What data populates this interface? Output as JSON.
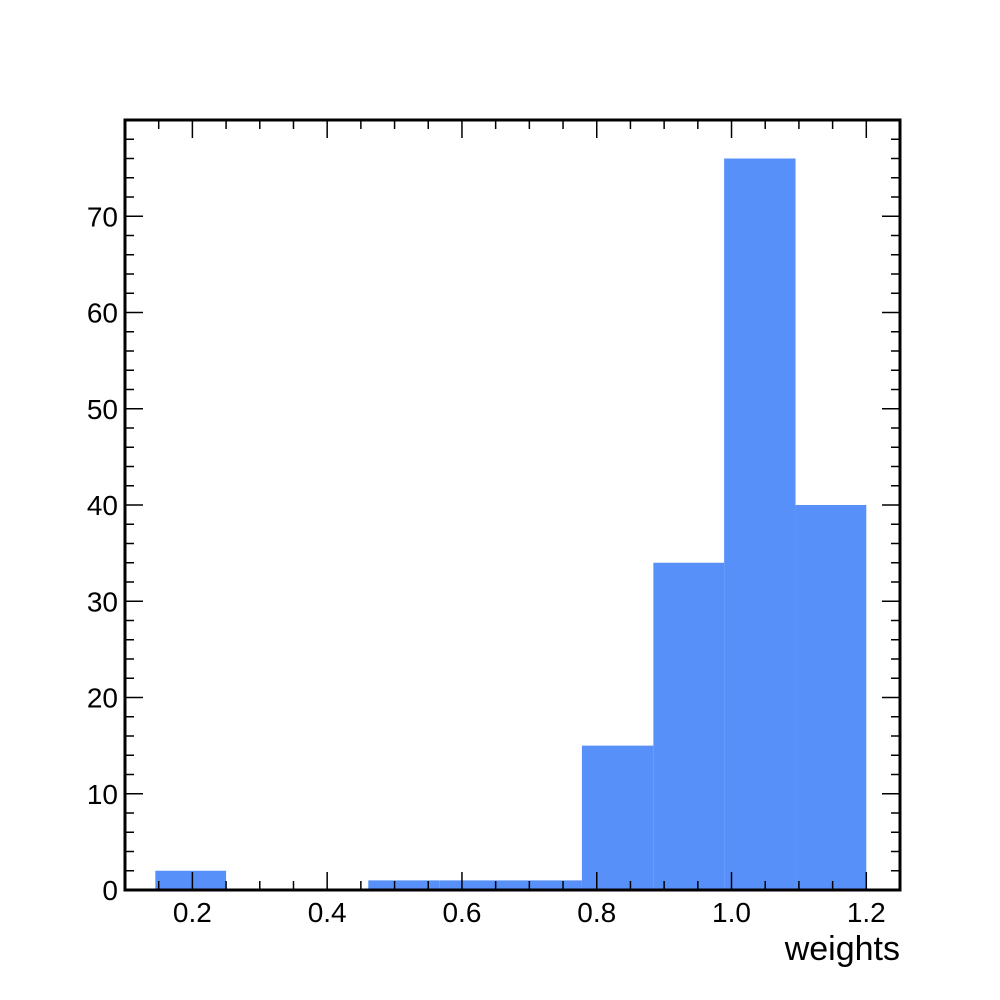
{
  "chart_data": {
    "type": "bar",
    "histogram": true,
    "bins": [
      {
        "x0": 0.145,
        "x1": 0.25,
        "count": 2
      },
      {
        "x0": 0.25,
        "x1": 0.356,
        "count": 0
      },
      {
        "x0": 0.356,
        "x1": 0.461,
        "count": 0
      },
      {
        "x0": 0.461,
        "x1": 0.567,
        "count": 1
      },
      {
        "x0": 0.567,
        "x1": 0.672,
        "count": 1
      },
      {
        "x0": 0.672,
        "x1": 0.778,
        "count": 1
      },
      {
        "x0": 0.778,
        "x1": 0.884,
        "count": 15
      },
      {
        "x0": 0.884,
        "x1": 0.989,
        "count": 34
      },
      {
        "x0": 0.989,
        "x1": 1.095,
        "count": 76
      },
      {
        "x0": 1.095,
        "x1": 1.2,
        "count": 40
      }
    ],
    "xlabel": "weights",
    "ylabel": "",
    "title": "",
    "xlim": [
      0.1,
      1.25
    ],
    "ylim": [
      0,
      80
    ],
    "xticks": [
      0.2,
      0.4,
      0.6,
      0.8,
      1.0,
      1.2
    ],
    "xtick_labels": [
      "0.2",
      "0.4",
      "0.6",
      "0.8",
      "1.0",
      "1.2"
    ],
    "yticks": [
      0,
      10,
      20,
      30,
      40,
      50,
      60,
      70
    ],
    "ytick_labels": [
      "0",
      "10",
      "20",
      "30",
      "40",
      "50",
      "60",
      "70"
    ],
    "grid": false,
    "legend": "none",
    "bar_color": "#5890fa",
    "axis_color": "#000000"
  }
}
